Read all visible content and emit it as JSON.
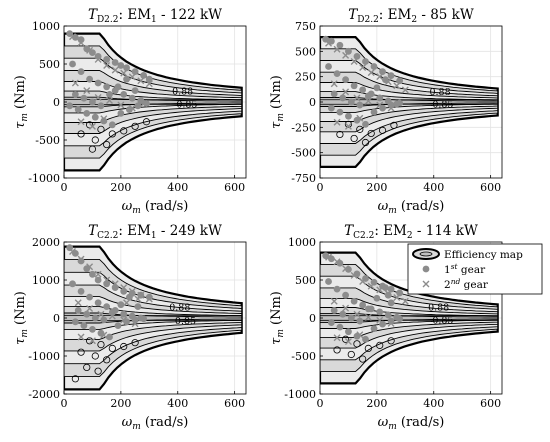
{
  "chart_data": [
    {
      "type": "scatter",
      "title": {
        "sym": "T",
        "sub": "D2.2",
        "rest": ": EM",
        "emsub": "1",
        "tail": " - 122 kW"
      },
      "xlabel": {
        "sym": "ω",
        "sub": "m",
        "rest": " (rad/s)"
      },
      "ylabel": {
        "sym": "τ",
        "sub": "m",
        "rest": " (Nm)"
      },
      "xlim": [
        0,
        640
      ],
      "ylim": [
        -1000,
        1000
      ],
      "xticks": [
        0,
        200,
        400,
        600
      ],
      "yticks": [
        -1000,
        -500,
        0,
        500,
        1000
      ],
      "xticklabels": [
        "0",
        "200",
        "400",
        "600"
      ],
      "yticklabels": [
        "-1000",
        "-500",
        "0",
        "500",
        "1000"
      ],
      "torque_max": 900,
      "base_speed": 130,
      "max_speed": 625,
      "contour_labels": [
        {
          "text": "0.88",
          "x": 380,
          "y": 140
        },
        {
          "text": "0.85",
          "x": 395,
          "y": -35
        }
      ],
      "gear1_points": [
        [
          20,
          900
        ],
        [
          40,
          850
        ],
        [
          60,
          820
        ],
        [
          80,
          700
        ],
        [
          100,
          650
        ],
        [
          120,
          600
        ],
        [
          150,
          560
        ],
        [
          180,
          520
        ],
        [
          200,
          480
        ],
        [
          220,
          450
        ],
        [
          250,
          400
        ],
        [
          280,
          350
        ],
        [
          300,
          300
        ],
        [
          30,
          500
        ],
        [
          60,
          400
        ],
        [
          90,
          300
        ],
        [
          120,
          250
        ],
        [
          150,
          200
        ],
        [
          180,
          150
        ],
        [
          210,
          100
        ],
        [
          240,
          50
        ],
        [
          270,
          20
        ],
        [
          20,
          -50
        ],
        [
          50,
          -100
        ],
        [
          80,
          -150
        ],
        [
          110,
          -200
        ],
        [
          140,
          -250
        ],
        [
          170,
          -300
        ],
        [
          200,
          -150
        ],
        [
          230,
          -100
        ],
        [
          260,
          -50
        ],
        [
          290,
          -20
        ],
        [
          40,
          100
        ],
        [
          70,
          50
        ],
        [
          100,
          0
        ],
        [
          130,
          -50
        ],
        [
          160,
          100
        ],
        [
          190,
          200
        ],
        [
          220,
          300
        ],
        [
          250,
          150
        ]
      ],
      "gear2_points": [
        [
          30,
          860
        ],
        [
          60,
          780
        ],
        [
          90,
          680
        ],
        [
          120,
          560
        ],
        [
          150,
          480
        ],
        [
          180,
          420
        ],
        [
          210,
          380
        ],
        [
          240,
          330
        ],
        [
          270,
          280
        ],
        [
          300,
          240
        ],
        [
          40,
          250
        ],
        [
          80,
          150
        ],
        [
          120,
          60
        ],
        [
          160,
          20
        ],
        [
          200,
          -40
        ],
        [
          240,
          -80
        ],
        [
          280,
          -20
        ],
        [
          60,
          -260
        ],
        [
          100,
          -320
        ],
        [
          140,
          -220
        ]
      ],
      "loss_loops": [
        [
          90,
          -300
        ],
        [
          130,
          -360
        ],
        [
          170,
          -420
        ],
        [
          210,
          -380
        ],
        [
          250,
          -320
        ],
        [
          290,
          -260
        ],
        [
          110,
          -500
        ],
        [
          150,
          -560
        ],
        [
          60,
          -420
        ],
        [
          100,
          -620
        ]
      ],
      "show_legend": false
    },
    {
      "type": "scatter",
      "title": {
        "sym": "T",
        "sub": "D2.2",
        "rest": ": EM",
        "emsub": "2",
        "tail": " - 85 kW"
      },
      "xlabel": {
        "sym": "ω",
        "sub": "m",
        "rest": " (rad/s)"
      },
      "ylabel": {
        "sym": "τ",
        "sub": "m",
        "rest": " (Nm)"
      },
      "xlim": [
        0,
        640
      ],
      "ylim": [
        -750,
        750
      ],
      "xticks": [
        0,
        200,
        400,
        600
      ],
      "yticks": [
        -750,
        -500,
        -250,
        0,
        250,
        500,
        750
      ],
      "xticklabels": [
        "0",
        "200",
        "400",
        "600"
      ],
      "yticklabels": [
        "-750",
        "-500",
        "-250",
        "0",
        "250",
        "500",
        "750"
      ],
      "torque_max": 640,
      "base_speed": 130,
      "max_speed": 625,
      "contour_labels": [
        {
          "text": "0.88",
          "x": 385,
          "y": 100
        },
        {
          "text": "0.85",
          "x": 395,
          "y": -25
        }
      ],
      "gear1_points": [
        [
          20,
          620
        ],
        [
          40,
          600
        ],
        [
          70,
          560
        ],
        [
          100,
          500
        ],
        [
          130,
          450
        ],
        [
          160,
          400
        ],
        [
          190,
          350
        ],
        [
          220,
          300
        ],
        [
          250,
          260
        ],
        [
          280,
          210
        ],
        [
          30,
          350
        ],
        [
          60,
          280
        ],
        [
          90,
          220
        ],
        [
          120,
          160
        ],
        [
          150,
          120
        ],
        [
          180,
          80
        ],
        [
          210,
          40
        ],
        [
          240,
          10
        ],
        [
          270,
          -20
        ],
        [
          40,
          -60
        ],
        [
          70,
          -100
        ],
        [
          100,
          -140
        ],
        [
          130,
          -180
        ],
        [
          160,
          -220
        ],
        [
          190,
          -100
        ],
        [
          220,
          -60
        ],
        [
          250,
          -30
        ],
        [
          280,
          -10
        ],
        [
          50,
          80
        ],
        [
          80,
          40
        ],
        [
          110,
          0
        ],
        [
          140,
          -30
        ],
        [
          170,
          60
        ],
        [
          200,
          140
        ],
        [
          230,
          220
        ]
      ],
      "gear2_points": [
        [
          30,
          580
        ],
        [
          60,
          520
        ],
        [
          90,
          460
        ],
        [
          120,
          400
        ],
        [
          150,
          340
        ],
        [
          180,
          290
        ],
        [
          210,
          250
        ],
        [
          240,
          200
        ],
        [
          270,
          160
        ],
        [
          300,
          120
        ],
        [
          50,
          180
        ],
        [
          90,
          100
        ],
        [
          130,
          40
        ],
        [
          170,
          10
        ],
        [
          210,
          -30
        ],
        [
          250,
          -60
        ],
        [
          60,
          -200
        ],
        [
          100,
          -240
        ],
        [
          140,
          -160
        ]
      ],
      "loss_loops": [
        [
          100,
          -220
        ],
        [
          140,
          -270
        ],
        [
          180,
          -310
        ],
        [
          220,
          -280
        ],
        [
          260,
          -230
        ],
        [
          120,
          -360
        ],
        [
          160,
          -400
        ],
        [
          70,
          -320
        ]
      ],
      "show_legend": false
    },
    {
      "type": "scatter",
      "title": {
        "sym": "T",
        "sub": "C2.2",
        "rest": ": EM",
        "emsub": "1",
        "tail": " - 249 kW"
      },
      "xlabel": {
        "sym": "ω",
        "sub": "m",
        "rest": " (rad/s)"
      },
      "ylabel": {
        "sym": "τ",
        "sub": "m",
        "rest": " (Nm)"
      },
      "xlim": [
        0,
        640
      ],
      "ylim": [
        -2000,
        2000
      ],
      "xticks": [
        0,
        200,
        400,
        600
      ],
      "yticks": [
        -2000,
        -1000,
        0,
        1000,
        2000
      ],
      "xticklabels": [
        "0",
        "200",
        "400",
        "600"
      ],
      "yticklabels": [
        "-2000",
        "-1000",
        "0",
        "1000",
        "2000"
      ],
      "torque_max": 1880,
      "base_speed": 130,
      "max_speed": 625,
      "contour_labels": [
        {
          "text": "0.88",
          "x": 370,
          "y": 280
        },
        {
          "text": "0.85",
          "x": 390,
          "y": -80
        }
      ],
      "gear1_points": [
        [
          20,
          1850
        ],
        [
          40,
          1700
        ],
        [
          60,
          1500
        ],
        [
          80,
          1300
        ],
        [
          100,
          1150
        ],
        [
          120,
          1000
        ],
        [
          150,
          900
        ],
        [
          180,
          800
        ],
        [
          210,
          700
        ],
        [
          240,
          650
        ],
        [
          270,
          600
        ],
        [
          300,
          550
        ],
        [
          30,
          900
        ],
        [
          60,
          700
        ],
        [
          90,
          550
        ],
        [
          120,
          400
        ],
        [
          150,
          300
        ],
        [
          180,
          200
        ],
        [
          210,
          100
        ],
        [
          240,
          50
        ],
        [
          270,
          0
        ],
        [
          40,
          -100
        ],
        [
          70,
          -200
        ],
        [
          100,
          -300
        ],
        [
          130,
          -400
        ],
        [
          160,
          -500
        ],
        [
          190,
          -200
        ],
        [
          220,
          -100
        ],
        [
          250,
          -50
        ],
        [
          280,
          -20
        ],
        [
          50,
          200
        ],
        [
          80,
          100
        ],
        [
          110,
          0
        ],
        [
          140,
          -50
        ],
        [
          170,
          150
        ],
        [
          200,
          350
        ],
        [
          230,
          550
        ],
        [
          260,
          300
        ]
      ],
      "gear2_points": [
        [
          30,
          1750
        ],
        [
          60,
          1550
        ],
        [
          90,
          1350
        ],
        [
          120,
          1150
        ],
        [
          150,
          1000
        ],
        [
          180,
          900
        ],
        [
          210,
          800
        ],
        [
          240,
          700
        ],
        [
          270,
          600
        ],
        [
          300,
          500
        ],
        [
          50,
          400
        ],
        [
          90,
          250
        ],
        [
          130,
          100
        ],
        [
          170,
          50
        ],
        [
          210,
          -50
        ],
        [
          250,
          -150
        ],
        [
          60,
          -500
        ],
        [
          100,
          -600
        ],
        [
          140,
          -450
        ],
        [
          220,
          400
        ],
        [
          260,
          500
        ]
      ],
      "loss_loops": [
        [
          90,
          -600
        ],
        [
          130,
          -700
        ],
        [
          170,
          -800
        ],
        [
          210,
          -750
        ],
        [
          250,
          -650
        ],
        [
          110,
          -1000
        ],
        [
          150,
          -1100
        ],
        [
          60,
          -900
        ],
        [
          80,
          -1300
        ],
        [
          120,
          -1400
        ],
        [
          40,
          -1600
        ]
      ],
      "show_legend": false
    },
    {
      "type": "scatter",
      "title": {
        "sym": "T",
        "sub": "C2.2",
        "rest": ": EM",
        "emsub": "2",
        "tail": " - 114 kW"
      },
      "xlabel": {
        "sym": "ω",
        "sub": "m",
        "rest": " (rad/s)"
      },
      "ylabel": {
        "sym": "τ",
        "sub": "m",
        "rest": " (Nm)"
      },
      "xlim": [
        0,
        640
      ],
      "ylim": [
        -1000,
        1000
      ],
      "xticks": [
        0,
        200,
        400,
        600
      ],
      "yticks": [
        -1000,
        -500,
        0,
        500,
        1000
      ],
      "xticklabels": [
        "0",
        "200",
        "400",
        "600"
      ],
      "yticklabels": [
        "-1000",
        "-500",
        "0",
        "500",
        "1000"
      ],
      "torque_max": 860,
      "base_speed": 130,
      "max_speed": 625,
      "contour_labels": [
        {
          "text": "0.88",
          "x": 380,
          "y": 140
        },
        {
          "text": "0.85",
          "x": 395,
          "y": -35
        }
      ],
      "gear1_points": [
        [
          20,
          820
        ],
        [
          40,
          780
        ],
        [
          70,
          720
        ],
        [
          100,
          640
        ],
        [
          130,
          580
        ],
        [
          160,
          520
        ],
        [
          190,
          470
        ],
        [
          220,
          420
        ],
        [
          250,
          380
        ],
        [
          280,
          330
        ],
        [
          30,
          480
        ],
        [
          60,
          380
        ],
        [
          90,
          300
        ],
        [
          120,
          220
        ],
        [
          150,
          170
        ],
        [
          180,
          120
        ],
        [
          210,
          80
        ],
        [
          240,
          40
        ],
        [
          270,
          10
        ],
        [
          40,
          -60
        ],
        [
          70,
          -120
        ],
        [
          100,
          -180
        ],
        [
          130,
          -240
        ],
        [
          160,
          -280
        ],
        [
          190,
          -140
        ],
        [
          220,
          -80
        ],
        [
          250,
          -40
        ],
        [
          280,
          -10
        ],
        [
          50,
          100
        ],
        [
          80,
          50
        ],
        [
          110,
          0
        ],
        [
          140,
          -40
        ],
        [
          170,
          120
        ],
        [
          200,
          260
        ],
        [
          230,
          400
        ],
        [
          240,
          300
        ],
        [
          250,
          200
        ]
      ],
      "gear2_points": [
        [
          30,
          800
        ],
        [
          60,
          740
        ],
        [
          90,
          650
        ],
        [
          120,
          560
        ],
        [
          150,
          480
        ],
        [
          180,
          420
        ],
        [
          210,
          370
        ],
        [
          240,
          320
        ],
        [
          270,
          270
        ],
        [
          300,
          220
        ],
        [
          50,
          220
        ],
        [
          90,
          130
        ],
        [
          130,
          50
        ],
        [
          170,
          10
        ],
        [
          210,
          -30
        ],
        [
          250,
          -70
        ],
        [
          60,
          -260
        ],
        [
          100,
          -310
        ],
        [
          140,
          -220
        ]
      ],
      "loss_loops": [
        [
          90,
          -280
        ],
        [
          130,
          -340
        ],
        [
          170,
          -400
        ],
        [
          210,
          -360
        ],
        [
          250,
          -300
        ],
        [
          110,
          -480
        ],
        [
          150,
          -540
        ],
        [
          60,
          -420
        ]
      ],
      "show_legend": true
    }
  ],
  "legend": {
    "entries": [
      {
        "key": "map",
        "label": "Efficiency map"
      },
      {
        "key": "g1",
        "label": "1",
        "sup": "st",
        "tail": " gear"
      },
      {
        "key": "g2",
        "label": "2",
        "sup": "nd",
        "tail": " gear"
      }
    ]
  },
  "colors": {
    "point": "#8c8c8c",
    "map_light": "#ebebeb",
    "map_mid": "#d9d9d9",
    "map_dark": "#bfbfbf",
    "grid": "#e3e3e3"
  }
}
